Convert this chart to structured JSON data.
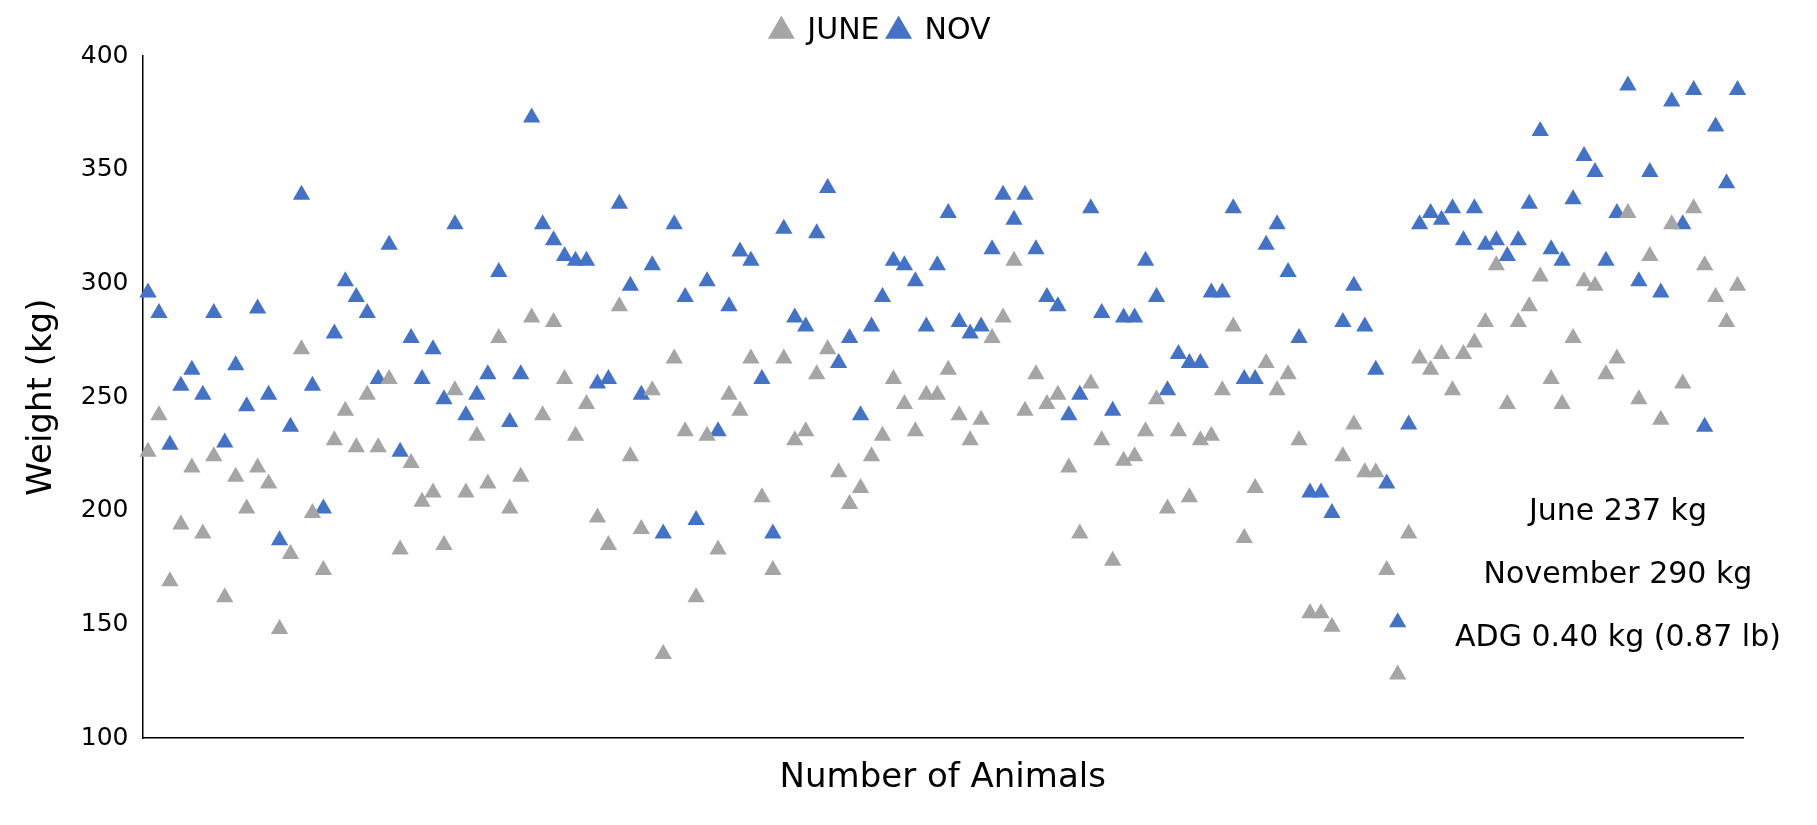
{
  "chart_data": {
    "type": "scatter",
    "xlabel": "Number of Animals",
    "ylabel": "Weight (kg)",
    "categories": [
      null,
      null,
      null,
      null,
      null,
      null,
      null,
      null,
      null,
      null,
      null,
      null,
      null,
      null,
      null,
      null,
      null,
      null,
      null,
      null,
      null,
      null,
      null,
      null,
      null,
      null,
      null,
      null,
      null,
      null,
      null,
      null,
      null,
      null,
      null,
      null,
      null,
      null,
      null,
      null,
      null,
      null,
      null,
      null,
      null,
      null,
      null,
      null,
      null,
      null,
      null,
      null,
      null,
      null,
      null,
      null,
      null,
      null,
      null,
      null,
      null,
      null,
      null,
      null,
      null,
      null,
      null,
      null,
      null,
      null,
      null,
      null,
      null,
      null,
      null,
      null,
      null,
      null,
      null,
      null,
      null,
      null,
      null,
      null,
      null,
      null,
      null,
      null,
      null,
      null,
      null,
      null,
      null,
      null,
      null,
      null,
      null,
      null,
      null,
      null,
      null,
      null,
      null,
      null,
      null,
      null,
      null,
      null,
      null,
      null,
      null,
      null,
      null,
      null,
      null,
      null,
      null,
      null,
      null,
      null,
      null,
      null,
      null,
      null,
      null,
      null,
      null,
      null,
      null,
      null,
      null,
      null,
      null,
      null,
      null,
      null,
      null,
      null,
      null,
      null,
      null,
      null,
      null,
      null,
      null,
      null
    ],
    "series": [
      {
        "name": "JUNE",
        "color": "#a5a5a5",
        "values": [
          226,
          242,
          169,
          194,
          219,
          190,
          224,
          162,
          215,
          201,
          219,
          212,
          148,
          181,
          271,
          199,
          174,
          231,
          244,
          228,
          251,
          228,
          258,
          183,
          221,
          204,
          208,
          185,
          253,
          208,
          233,
          212,
          276,
          201,
          215,
          285,
          242,
          283,
          258,
          233,
          247,
          197,
          185,
          290,
          224,
          192,
          253,
          137,
          267,
          235,
          162,
          233,
          183,
          251,
          244,
          267,
          206,
          174,
          267,
          231,
          235,
          260,
          271,
          217,
          203,
          210,
          224,
          233,
          258,
          247,
          235,
          251,
          251,
          262,
          242,
          231,
          240,
          276,
          285,
          310,
          244,
          260,
          247,
          251,
          219,
          190,
          256,
          231,
          178,
          222,
          224,
          235,
          249,
          201,
          235,
          206,
          231,
          233,
          253,
          281,
          188,
          210,
          265,
          253,
          260,
          231,
          155,
          155,
          149,
          224,
          238,
          217,
          217,
          174,
          128,
          190,
          267,
          262,
          269,
          253,
          269,
          274,
          283,
          308,
          247,
          283,
          290,
          303,
          258,
          247,
          276,
          301,
          299,
          260,
          267,
          331,
          249,
          312,
          240,
          326,
          256,
          333,
          308,
          294,
          283,
          299
        ]
      },
      {
        "name": "NOV",
        "color": "#4472c4",
        "values": [
          296,
          287,
          229,
          255,
          262,
          251,
          287,
          230,
          264,
          246,
          289,
          251,
          187,
          237,
          339,
          255,
          201,
          278,
          301,
          294,
          287,
          258,
          317,
          226,
          276,
          258,
          271,
          249,
          326,
          242,
          251,
          260,
          305,
          239,
          260,
          373,
          326,
          319,
          312,
          310,
          310,
          256,
          258,
          335,
          299,
          251,
          308,
          190,
          326,
          294,
          196,
          301,
          235,
          290,
          314,
          310,
          258,
          190,
          324,
          285,
          281,
          322,
          342,
          265,
          276,
          242,
          281,
          294,
          310,
          308,
          301,
          281,
          308,
          331,
          283,
          278,
          281,
          315,
          339,
          328,
          339,
          315,
          294,
          290,
          242,
          251,
          333,
          287,
          244,
          285,
          285,
          310,
          294,
          253,
          269,
          265,
          265,
          296,
          296,
          333,
          258,
          258,
          317,
          326,
          305,
          276,
          208,
          208,
          199,
          283,
          299,
          281,
          262,
          212,
          151,
          238,
          326,
          331,
          328,
          333,
          319,
          333,
          317,
          319,
          312,
          319,
          335,
          367,
          315,
          310,
          337,
          356,
          349,
          310,
          331,
          387,
          301,
          349,
          296,
          380,
          326,
          385,
          237,
          369,
          344,
          385
        ]
      }
    ],
    "ylim": [
      100,
      400
    ],
    "yticks": [
      100,
      150,
      200,
      250,
      300,
      350,
      400
    ],
    "tick_labels": "y",
    "grid": false,
    "legend": "top",
    "marker": "triangle",
    "annotations": [
      "June 237 kg",
      "November 290 kg",
      "ADG 0.40 kg (0.87 lb)"
    ]
  }
}
